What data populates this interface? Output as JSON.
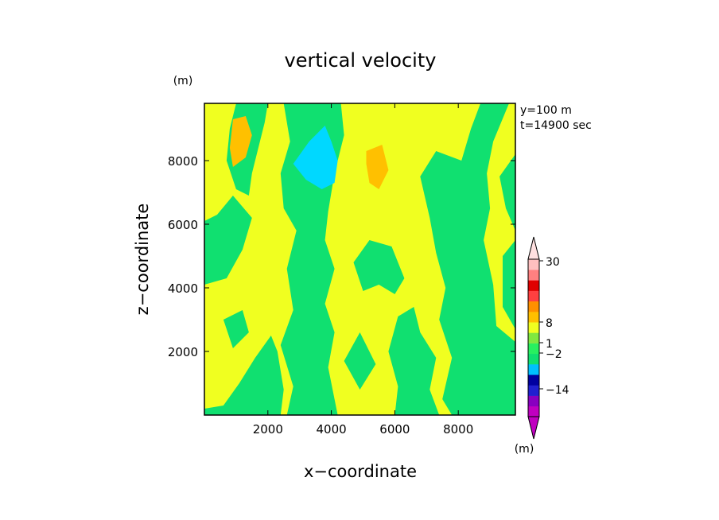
{
  "chart_data": {
    "type": "heatmap",
    "title": "vertical velocity",
    "xlabel": "x−coordinate",
    "ylabel": "z−coordinate",
    "x_unit": "(m)",
    "y_unit": "(m)",
    "info_lines": [
      "y=100 m",
      "t=14900 sec"
    ],
    "xlim": [
      0,
      9800
    ],
    "ylim": [
      0,
      9800
    ],
    "x_ticks": [
      {
        "value": 2000,
        "label": "2000"
      },
      {
        "value": 4000,
        "label": "4000"
      },
      {
        "value": 6000,
        "label": "6000"
      },
      {
        "value": 8000,
        "label": "8000"
      }
    ],
    "y_ticks": [
      {
        "value": 2000,
        "label": "2000"
      },
      {
        "value": 4000,
        "label": "4000"
      },
      {
        "value": 6000,
        "label": "6000"
      },
      {
        "value": 8000,
        "label": "8000"
      }
    ],
    "colorbar": {
      "unit": "(m)",
      "labels": [
        {
          "value": 30,
          "label": "30"
        },
        {
          "value": 8,
          "label": "8"
        },
        {
          "value": 1,
          "label": "1"
        },
        {
          "value": -2,
          "label": "−2"
        },
        {
          "value": -14,
          "label": "−14"
        }
      ],
      "levels_bottom_to_top": [
        {
          "color": "#c000c0"
        },
        {
          "color": "#8800c0"
        },
        {
          "color": "#2020d0"
        },
        {
          "color": "#0000a0"
        },
        {
          "color": "#00c0ff"
        },
        {
          "color": "#10e070"
        },
        {
          "color": "#28f060"
        },
        {
          "color": "#80e840"
        },
        {
          "color": "#f0ff20"
        },
        {
          "color": "#ffc000"
        },
        {
          "color": "#ff9000"
        },
        {
          "color": "#ff4040"
        },
        {
          "color": "#e00000"
        },
        {
          "color": "#ff8080"
        },
        {
          "color": "#ffc0c0"
        }
      ],
      "top_extend_color": "#ffe0e0",
      "bottom_extend_color": "#c000c0"
    },
    "background_color": "#f0ff20",
    "regions": [
      {
        "level": "green",
        "color": "#10e070",
        "points": [
          [
            9800,
            2700
          ],
          [
            9400,
            3400
          ],
          [
            9400,
            5000
          ],
          [
            9800,
            5500
          ]
        ]
      },
      {
        "level": "green",
        "color": "#10e070",
        "points": [
          [
            9800,
            5800
          ],
          [
            9500,
            6500
          ],
          [
            9300,
            7500
          ],
          [
            9800,
            8200
          ]
        ]
      },
      {
        "level": "green",
        "color": "#10e070",
        "points": [
          [
            8700,
            9800
          ],
          [
            8400,
            9000
          ],
          [
            8100,
            8000
          ],
          [
            7300,
            8300
          ],
          [
            6800,
            7500
          ],
          [
            7100,
            6200
          ],
          [
            7300,
            5100
          ],
          [
            7600,
            4000
          ],
          [
            7400,
            3000
          ],
          [
            7800,
            1800
          ],
          [
            7500,
            500
          ],
          [
            7800,
            0
          ],
          [
            9800,
            0
          ],
          [
            9800,
            2300
          ],
          [
            9200,
            2800
          ],
          [
            9100,
            4100
          ],
          [
            8800,
            5500
          ],
          [
            9000,
            6500
          ],
          [
            8900,
            7600
          ],
          [
            9100,
            8600
          ],
          [
            9600,
            9800
          ]
        ]
      },
      {
        "level": "green",
        "color": "#10e070",
        "points": [
          [
            6000,
            0
          ],
          [
            7400,
            0
          ],
          [
            7100,
            800
          ],
          [
            7300,
            1800
          ],
          [
            6800,
            2600
          ],
          [
            6600,
            3400
          ],
          [
            6100,
            3100
          ],
          [
            5800,
            2000
          ],
          [
            6100,
            900
          ]
        ]
      },
      {
        "level": "green",
        "color": "#10e070",
        "points": [
          [
            1000,
            9800
          ],
          [
            2000,
            9800
          ],
          [
            1900,
            9200
          ],
          [
            1700,
            8400
          ],
          [
            1500,
            7600
          ],
          [
            1400,
            6900
          ],
          [
            1000,
            7100
          ],
          [
            700,
            8000
          ],
          [
            800,
            9000
          ]
        ]
      },
      {
        "level": "green",
        "color": "#10e070",
        "points": [
          [
            2500,
            9800
          ],
          [
            4300,
            9800
          ],
          [
            4400,
            8800
          ],
          [
            4100,
            7600
          ],
          [
            3900,
            6400
          ],
          [
            3800,
            5500
          ],
          [
            4100,
            4600
          ],
          [
            3800,
            3500
          ],
          [
            4100,
            2600
          ],
          [
            3900,
            1500
          ],
          [
            4200,
            0
          ],
          [
            2600,
            0
          ],
          [
            2800,
            900
          ],
          [
            2400,
            2200
          ],
          [
            2800,
            3300
          ],
          [
            2600,
            4600
          ],
          [
            2900,
            5800
          ],
          [
            2500,
            6500
          ],
          [
            2400,
            7600
          ],
          [
            2700,
            8600
          ]
        ]
      },
      {
        "level": "green",
        "color": "#10e070",
        "points": [
          [
            0,
            4100
          ],
          [
            700,
            4300
          ],
          [
            1200,
            5200
          ],
          [
            1500,
            6200
          ],
          [
            900,
            6900
          ],
          [
            400,
            6300
          ],
          [
            0,
            6100
          ]
        ]
      },
      {
        "level": "green",
        "color": "#10e070",
        "points": [
          [
            0,
            200
          ],
          [
            600,
            300
          ],
          [
            1100,
            1000
          ],
          [
            1600,
            1800
          ],
          [
            2100,
            2500
          ],
          [
            2300,
            2000
          ],
          [
            2500,
            800
          ],
          [
            2400,
            0
          ],
          [
            0,
            0
          ]
        ]
      },
      {
        "level": "green",
        "color": "#10e070",
        "points": [
          [
            4700,
            4800
          ],
          [
            5200,
            5500
          ],
          [
            5900,
            5300
          ],
          [
            6300,
            4300
          ],
          [
            6000,
            3800
          ],
          [
            5500,
            4100
          ],
          [
            5000,
            3900
          ]
        ]
      },
      {
        "level": "green",
        "color": "#10e070",
        "points": [
          [
            4400,
            1700
          ],
          [
            4900,
            2600
          ],
          [
            5400,
            1600
          ],
          [
            4900,
            800
          ]
        ]
      },
      {
        "level": "green",
        "color": "#10e070",
        "points": [
          [
            600,
            3000
          ],
          [
            1200,
            3300
          ],
          [
            1400,
            2600
          ],
          [
            900,
            2100
          ]
        ]
      },
      {
        "level": "cyan",
        "color": "#00d8ff",
        "points": [
          [
            3300,
            8600
          ],
          [
            3800,
            9100
          ],
          [
            4000,
            8600
          ],
          [
            4200,
            8000
          ],
          [
            4100,
            7300
          ],
          [
            3700,
            7100
          ],
          [
            3200,
            7400
          ],
          [
            2800,
            7900
          ]
        ]
      },
      {
        "level": "orange",
        "color": "#ffc000",
        "points": [
          [
            900,
            9300
          ],
          [
            1300,
            9400
          ],
          [
            1500,
            8800
          ],
          [
            1300,
            8100
          ],
          [
            900,
            7800
          ],
          [
            800,
            8400
          ]
        ]
      },
      {
        "level": "orange",
        "color": "#ffc000",
        "points": [
          [
            5100,
            8300
          ],
          [
            5600,
            8500
          ],
          [
            5800,
            7700
          ],
          [
            5500,
            7100
          ],
          [
            5200,
            7300
          ],
          [
            5100,
            7900
          ]
        ]
      }
    ]
  }
}
